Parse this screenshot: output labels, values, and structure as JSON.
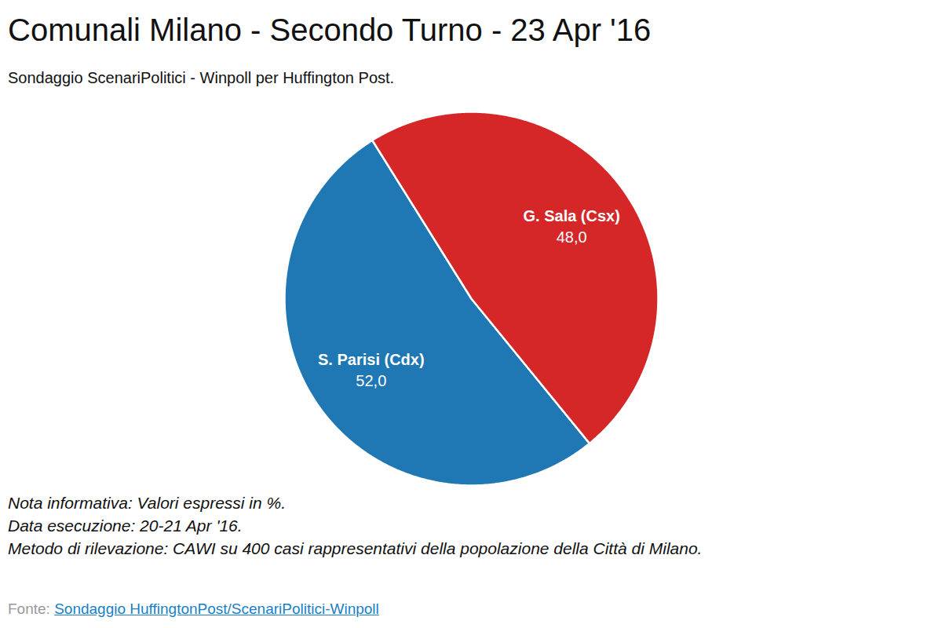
{
  "chart_data": {
    "type": "pie",
    "title": "Comunali Milano - Secondo Turno - 23 Apr '16",
    "subtitle": "Sondaggio ScenariPolitici - Winpoll per Huffington Post.",
    "categories": [
      "S. Parisi (Cdx)",
      "G. Sala (Csx)"
    ],
    "values": [
      52,
      48
    ],
    "value_labels": [
      "52,0",
      "48,0"
    ],
    "colors": [
      "#1f77b4",
      "#d62728"
    ],
    "data_labels": true,
    "tick_labels": false,
    "notes": [
      "Nota informativa: Valori espressi in %.",
      "Data esecuzione: 20-21 Apr '16.",
      "Metodo di rilevazione: CAWI su 400 casi rappresentativi della popolazione della Città di Milano."
    ],
    "source": {
      "label": "Fonte:",
      "text": "Sondaggio HuffingtonPost/ScenariPolitici-Winpoll"
    }
  }
}
